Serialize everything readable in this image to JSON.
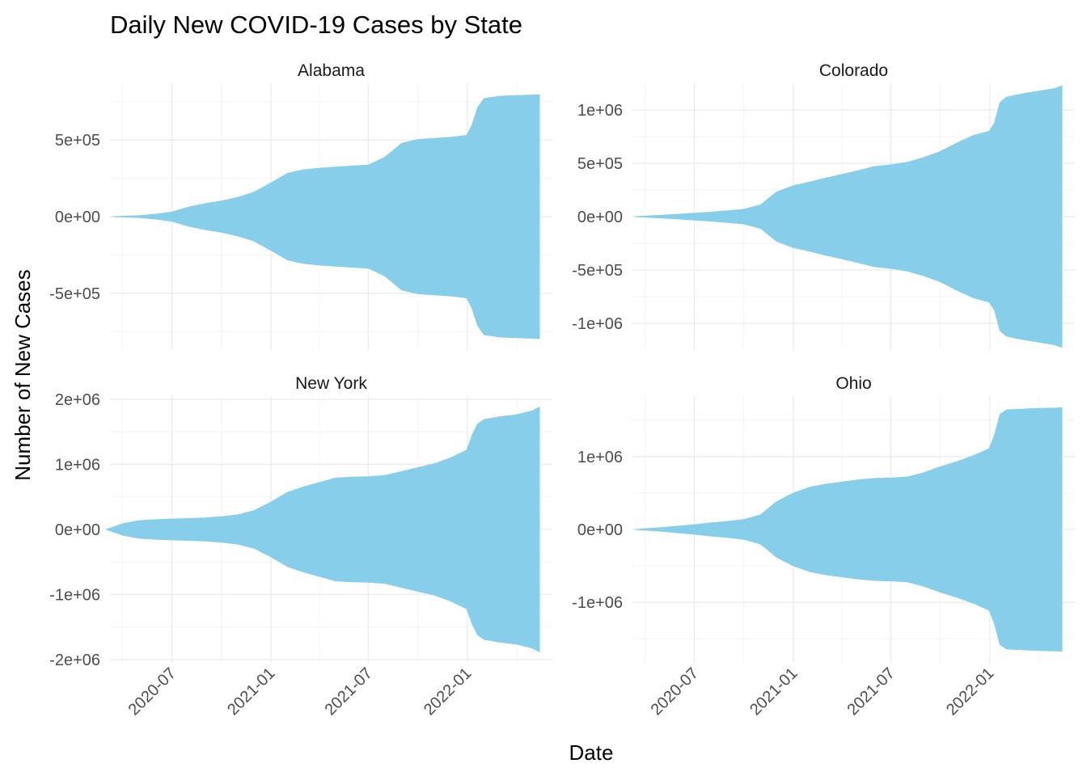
{
  "colors": {
    "fill": "#87CEEB",
    "grid_major": "#ebebeb",
    "grid_minor": "#f3f3f3"
  },
  "chart_data": {
    "type": "area",
    "title": "Daily New COVID-19 Cases by State",
    "xlabel": "Date",
    "ylabel": "Number of New Cases",
    "grid": true,
    "x_ticks": [
      "2020-07",
      "2021-01",
      "2021-07",
      "2022-01"
    ],
    "x_range": [
      "2020-03-08",
      "2022-06-08"
    ],
    "panels": [
      {
        "name": "Alabama",
        "y_ticks": [
          500000,
          0,
          -500000
        ],
        "y_tick_labels": [
          "5e+05",
          "0e+00",
          "-5e+05"
        ],
        "ylim": [
          -870000,
          870000
        ],
        "x": [
          "2020-03-13",
          "2020-05-01",
          "2020-06-01",
          "2020-07-01",
          "2020-08-01",
          "2020-09-01",
          "2020-10-01",
          "2020-11-01",
          "2020-12-01",
          "2021-01-01",
          "2021-02-01",
          "2021-03-01",
          "2021-04-01",
          "2021-05-01",
          "2021-06-01",
          "2021-07-01",
          "2021-08-01",
          "2021-09-01",
          "2021-10-01",
          "2021-11-01",
          "2021-12-01",
          "2021-12-31",
          "2022-01-10",
          "2022-01-20",
          "2022-02-01",
          "2022-03-01",
          "2022-04-01",
          "2022-05-01",
          "2022-05-15"
        ],
        "y": [
          0,
          6000,
          16000,
          30000,
          62000,
          85000,
          102000,
          126000,
          160000,
          220000,
          282000,
          305000,
          316000,
          323000,
          330000,
          336000,
          388000,
          478000,
          503000,
          510000,
          517000,
          530000,
          600000,
          710000,
          770000,
          785000,
          790000,
          793000,
          795000
        ]
      },
      {
        "name": "Colorado",
        "y_ticks": [
          1000000,
          500000,
          0,
          -500000,
          -1000000
        ],
        "y_tick_labels": [
          "1e+06",
          "5e+05",
          "0e+00",
          "-5e+05",
          "-1e+06"
        ],
        "ylim": [
          -1250000,
          1250000
        ],
        "x": [
          "2020-03-13",
          "2020-05-01",
          "2020-06-01",
          "2020-07-01",
          "2020-08-01",
          "2020-09-01",
          "2020-10-01",
          "2020-11-01",
          "2020-12-01",
          "2021-01-01",
          "2021-02-01",
          "2021-03-01",
          "2021-04-01",
          "2021-05-01",
          "2021-06-01",
          "2021-07-01",
          "2021-08-01",
          "2021-09-01",
          "2021-10-01",
          "2021-11-01",
          "2021-12-01",
          "2021-12-31",
          "2022-01-10",
          "2022-01-20",
          "2022-02-01",
          "2022-03-01",
          "2022-04-01",
          "2022-05-01",
          "2022-05-15"
        ],
        "y": [
          0,
          13000,
          22000,
          32000,
          42000,
          55000,
          68000,
          110000,
          230000,
          290000,
          325000,
          360000,
          395000,
          430000,
          470000,
          485000,
          510000,
          555000,
          610000,
          690000,
          760000,
          800000,
          880000,
          1070000,
          1120000,
          1150000,
          1175000,
          1200000,
          1225000
        ]
      },
      {
        "name": "New York",
        "y_ticks": [
          2000000,
          1000000,
          0,
          -1000000,
          -2000000
        ],
        "y_tick_labels": [
          "2e+06",
          "1e+06",
          "0e+00",
          "-1e+06",
          "-2e+06"
        ],
        "ylim": [
          -2050000,
          2050000
        ],
        "x": [
          "2020-03-01",
          "2020-03-15",
          "2020-04-01",
          "2020-05-01",
          "2020-06-01",
          "2020-07-01",
          "2020-08-01",
          "2020-09-01",
          "2020-10-01",
          "2020-11-01",
          "2020-12-01",
          "2021-01-01",
          "2021-02-01",
          "2021-03-01",
          "2021-04-01",
          "2021-05-01",
          "2021-06-01",
          "2021-07-01",
          "2021-08-01",
          "2021-09-01",
          "2021-10-01",
          "2021-11-01",
          "2021-12-01",
          "2021-12-31",
          "2022-01-10",
          "2022-01-20",
          "2022-02-01",
          "2022-03-01",
          "2022-04-01",
          "2022-05-01",
          "2022-05-15"
        ],
        "y": [
          0,
          40000,
          90000,
          135000,
          150000,
          160000,
          168000,
          178000,
          195000,
          225000,
          290000,
          420000,
          570000,
          650000,
          720000,
          790000,
          805000,
          810000,
          830000,
          890000,
          950000,
          1010000,
          1100000,
          1220000,
          1450000,
          1620000,
          1690000,
          1730000,
          1760000,
          1820000,
          1880000
        ]
      },
      {
        "name": "Ohio",
        "y_ticks": [
          1000000,
          0,
          -1000000
        ],
        "y_tick_labels": [
          "1e+06",
          "0e+00",
          "-1e+06"
        ],
        "ylim": [
          -1830000,
          1830000
        ],
        "x": [
          "2020-03-13",
          "2020-05-01",
          "2020-06-01",
          "2020-07-01",
          "2020-08-01",
          "2020-09-01",
          "2020-10-01",
          "2020-11-01",
          "2020-12-01",
          "2021-01-01",
          "2021-02-01",
          "2021-03-01",
          "2021-04-01",
          "2021-05-01",
          "2021-06-01",
          "2021-07-01",
          "2021-08-01",
          "2021-09-01",
          "2021-10-01",
          "2021-11-01",
          "2021-12-01",
          "2021-12-31",
          "2022-01-10",
          "2022-01-20",
          "2022-02-01",
          "2022-03-01",
          "2022-04-01",
          "2022-05-01",
          "2022-05-15"
        ],
        "y": [
          0,
          25000,
          45000,
          65000,
          90000,
          110000,
          135000,
          200000,
          380000,
          500000,
          580000,
          620000,
          650000,
          680000,
          700000,
          705000,
          720000,
          780000,
          860000,
          930000,
          1010000,
          1110000,
          1300000,
          1580000,
          1640000,
          1650000,
          1660000,
          1665000,
          1670000
        ]
      }
    ]
  }
}
